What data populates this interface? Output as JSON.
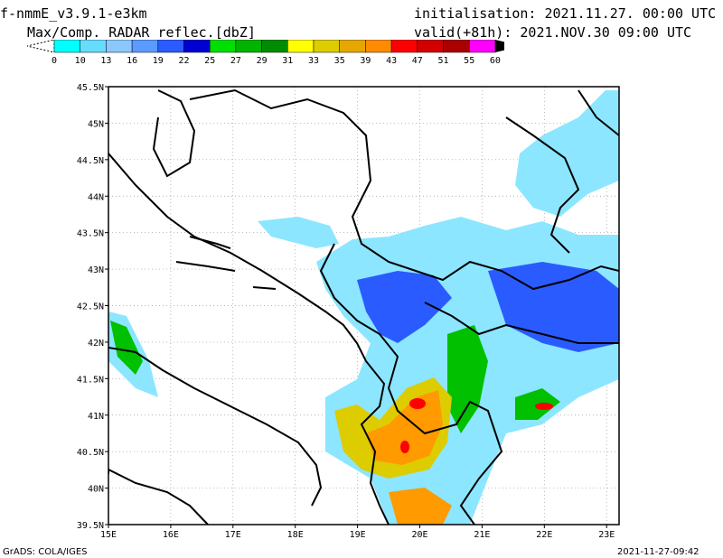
{
  "header": {
    "model": "f-nmmE_v3.9.1-e3km",
    "product": "Max/Comp. RADAR reflec.[dbZ]",
    "init_label": "initialisation:",
    "init_value": "2021.11.27. 00:00 UTC",
    "valid_label": "valid(+81h):",
    "valid_value": "2021.NOV.30 09:00 UTC"
  },
  "colorbar": {
    "ticks": [
      "0",
      "10",
      "13",
      "16",
      "19",
      "22",
      "25",
      "27",
      "29",
      "31",
      "33",
      "35",
      "39",
      "43",
      "47",
      "51",
      "55",
      "60"
    ],
    "colors": [
      "#00ffff",
      "#66ddff",
      "#8cc8ff",
      "#5a9bff",
      "#2a5bff",
      "#0000d2",
      "#00e000",
      "#00b400",
      "#008c00",
      "#ffff00",
      "#ddcc00",
      "#e6a800",
      "#ff8c00",
      "#ff0000",
      "#d20000",
      "#aa0000",
      "#ff00ff",
      "#b45ad2"
    ]
  },
  "map": {
    "lat_labels": [
      "45.5N",
      "45N",
      "44.5N",
      "44N",
      "43.5N",
      "43N",
      "42.5N",
      "42N",
      "41.5N",
      "41N",
      "40.5N",
      "40N",
      "39.5N"
    ],
    "lon_labels": [
      "15E",
      "16E",
      "17E",
      "18E",
      "19E",
      "20E",
      "21E",
      "22E",
      "23E"
    ],
    "grid": true,
    "extent": {
      "lon": [
        15,
        23.2
      ],
      "lat": [
        39.5,
        45.5
      ]
    }
  },
  "footer": {
    "credit": "GrADS: COLA/IGES",
    "timestamp": "2021-11-27-09:42"
  }
}
